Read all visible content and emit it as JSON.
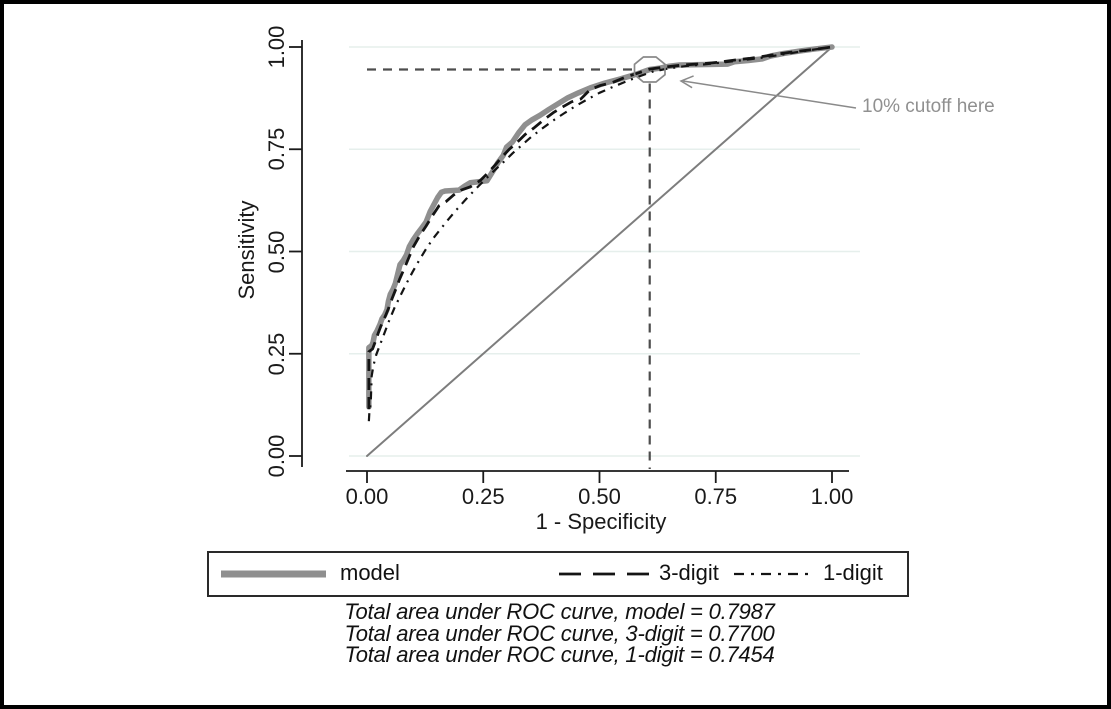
{
  "chart_data": {
    "type": "line",
    "title": "",
    "xlabel": "1 - Specificity",
    "ylabel": "Sensitivity",
    "xlim": [
      0,
      1
    ],
    "ylim": [
      0,
      1
    ],
    "xtick_values": [
      0,
      0.25,
      0.5,
      0.75,
      1
    ],
    "xtick_labels": [
      "0.00",
      "0.25",
      "0.50",
      "0.75",
      "1.00"
    ],
    "ytick_values": [
      0,
      0.25,
      0.5,
      0.75,
      1
    ],
    "ytick_labels": [
      "0.00",
      "0.25",
      "0.50",
      "0.75",
      "1.00"
    ],
    "grid": "horizontal-only",
    "colors": {
      "gridline": "#e6efec",
      "axis": "#1a1a1a",
      "cutoff_dash": "#4d4d4d",
      "annotation": "#909090",
      "reference": "#7d7d7d"
    },
    "series": [
      {
        "name": "model",
        "style": "solid",
        "color": "#8f8f8f",
        "width": 5.5,
        "points": [
          [
            0.004,
            0.12
          ],
          [
            0.004,
            0.265
          ],
          [
            0.01,
            0.27
          ],
          [
            0.013,
            0.278
          ],
          [
            0.016,
            0.295
          ],
          [
            0.022,
            0.307
          ],
          [
            0.028,
            0.322
          ],
          [
            0.032,
            0.335
          ],
          [
            0.038,
            0.345
          ],
          [
            0.043,
            0.358
          ],
          [
            0.046,
            0.378
          ],
          [
            0.05,
            0.395
          ],
          [
            0.056,
            0.408
          ],
          [
            0.061,
            0.422
          ],
          [
            0.066,
            0.445
          ],
          [
            0.071,
            0.468
          ],
          [
            0.078,
            0.478
          ],
          [
            0.085,
            0.492
          ],
          [
            0.091,
            0.512
          ],
          [
            0.099,
            0.528
          ],
          [
            0.108,
            0.543
          ],
          [
            0.118,
            0.558
          ],
          [
            0.127,
            0.572
          ],
          [
            0.136,
            0.598
          ],
          [
            0.144,
            0.615
          ],
          [
            0.152,
            0.632
          ],
          [
            0.16,
            0.645
          ],
          [
            0.168,
            0.648
          ],
          [
            0.198,
            0.65
          ],
          [
            0.21,
            0.66
          ],
          [
            0.222,
            0.668
          ],
          [
            0.258,
            0.673
          ],
          [
            0.27,
            0.695
          ],
          [
            0.282,
            0.718
          ],
          [
            0.293,
            0.735
          ],
          [
            0.3,
            0.755
          ],
          [
            0.313,
            0.768
          ],
          [
            0.326,
            0.79
          ],
          [
            0.34,
            0.81
          ],
          [
            0.355,
            0.822
          ],
          [
            0.372,
            0.833
          ],
          [
            0.392,
            0.848
          ],
          [
            0.412,
            0.862
          ],
          [
            0.432,
            0.876
          ],
          [
            0.455,
            0.888
          ],
          [
            0.48,
            0.9
          ],
          [
            0.512,
            0.912
          ],
          [
            0.545,
            0.922
          ],
          [
            0.578,
            0.933
          ],
          [
            0.608,
            0.945
          ],
          [
            0.628,
            0.948
          ],
          [
            0.65,
            0.953
          ],
          [
            0.672,
            0.956
          ],
          [
            0.775,
            0.958
          ],
          [
            0.79,
            0.964
          ],
          [
            0.82,
            0.967
          ],
          [
            0.85,
            0.971
          ],
          [
            0.868,
            0.978
          ],
          [
            0.895,
            0.984
          ],
          [
            0.93,
            0.99
          ],
          [
            0.962,
            0.995
          ],
          [
            1.0,
            1.0
          ]
        ]
      },
      {
        "name": "1-digit",
        "style": "dash-dot",
        "color": "#141414",
        "width": 2.2,
        "points": [
          [
            0.004,
            0.085
          ],
          [
            0.005,
            0.105
          ],
          [
            0.008,
            0.128
          ],
          [
            0.01,
            0.195
          ],
          [
            0.014,
            0.222
          ],
          [
            0.02,
            0.248
          ],
          [
            0.028,
            0.272
          ],
          [
            0.038,
            0.302
          ],
          [
            0.048,
            0.332
          ],
          [
            0.059,
            0.362
          ],
          [
            0.071,
            0.39
          ],
          [
            0.084,
            0.42
          ],
          [
            0.098,
            0.45
          ],
          [
            0.113,
            0.48
          ],
          [
            0.128,
            0.508
          ],
          [
            0.143,
            0.533
          ],
          [
            0.159,
            0.556
          ],
          [
            0.176,
            0.58
          ],
          [
            0.194,
            0.604
          ],
          [
            0.213,
            0.628
          ],
          [
            0.233,
            0.652
          ],
          [
            0.253,
            0.675
          ],
          [
            0.273,
            0.697
          ],
          [
            0.293,
            0.718
          ],
          [
            0.313,
            0.74
          ],
          [
            0.333,
            0.76
          ],
          [
            0.353,
            0.78
          ],
          [
            0.376,
            0.8
          ],
          [
            0.4,
            0.82
          ],
          [
            0.424,
            0.838
          ],
          [
            0.449,
            0.856
          ],
          [
            0.474,
            0.872
          ],
          [
            0.5,
            0.888
          ],
          [
            0.53,
            0.903
          ],
          [
            0.56,
            0.917
          ],
          [
            0.59,
            0.93
          ],
          [
            0.615,
            0.94
          ],
          [
            0.65,
            0.948
          ],
          [
            0.69,
            0.954
          ],
          [
            0.73,
            0.958
          ],
          [
            0.77,
            0.963
          ],
          [
            0.81,
            0.968
          ],
          [
            0.85,
            0.974
          ],
          [
            0.89,
            0.981
          ],
          [
            0.928,
            0.988
          ],
          [
            0.963,
            0.994
          ],
          [
            1.0,
            1.0
          ]
        ]
      },
      {
        "name": "3-digit",
        "style": "long-dash",
        "color": "#141414",
        "width": 2.8,
        "points": [
          [
            0.004,
            0.115
          ],
          [
            0.004,
            0.255
          ],
          [
            0.012,
            0.262
          ],
          [
            0.018,
            0.28
          ],
          [
            0.024,
            0.3
          ],
          [
            0.03,
            0.318
          ],
          [
            0.038,
            0.338
          ],
          [
            0.046,
            0.36
          ],
          [
            0.054,
            0.385
          ],
          [
            0.062,
            0.408
          ],
          [
            0.07,
            0.432
          ],
          [
            0.08,
            0.458
          ],
          [
            0.09,
            0.485
          ],
          [
            0.1,
            0.512
          ],
          [
            0.113,
            0.538
          ],
          [
            0.127,
            0.562
          ],
          [
            0.141,
            0.588
          ],
          [
            0.155,
            0.612
          ],
          [
            0.17,
            0.622
          ],
          [
            0.186,
            0.638
          ],
          [
            0.202,
            0.65
          ],
          [
            0.222,
            0.658
          ],
          [
            0.243,
            0.673
          ],
          [
            0.26,
            0.692
          ],
          [
            0.276,
            0.712
          ],
          [
            0.291,
            0.732
          ],
          [
            0.306,
            0.75
          ],
          [
            0.322,
            0.766
          ],
          [
            0.34,
            0.786
          ],
          [
            0.36,
            0.803
          ],
          [
            0.38,
            0.822
          ],
          [
            0.4,
            0.839
          ],
          [
            0.42,
            0.853
          ],
          [
            0.44,
            0.866
          ],
          [
            0.46,
            0.873
          ],
          [
            0.48,
            0.896
          ],
          [
            0.502,
            0.906
          ],
          [
            0.528,
            0.913
          ],
          [
            0.555,
            0.926
          ],
          [
            0.582,
            0.936
          ],
          [
            0.608,
            0.946
          ],
          [
            0.64,
            0.951
          ],
          [
            0.68,
            0.956
          ],
          [
            0.72,
            0.959
          ],
          [
            0.758,
            0.963
          ],
          [
            0.79,
            0.968
          ],
          [
            0.822,
            0.972
          ],
          [
            0.852,
            0.977
          ],
          [
            0.885,
            0.983
          ],
          [
            0.922,
            0.989
          ],
          [
            0.96,
            0.994
          ],
          [
            1.0,
            1.0
          ]
        ]
      },
      {
        "name": "reference",
        "style": "solid",
        "color": "#7d7d7d",
        "width": 2,
        "points": [
          [
            0,
            0
          ],
          [
            1,
            1
          ]
        ]
      }
    ],
    "cutoff_annotation": {
      "label": "10% cutoff here",
      "x": 0.608,
      "y": 0.945
    },
    "legend": {
      "position": "bottom",
      "entries": [
        {
          "label": "model",
          "style": "solid",
          "color": "#8f8f8f",
          "width": 7
        },
        {
          "label": "3-digit",
          "style": "long-dash",
          "color": "#141414",
          "width": 2.8
        },
        {
          "label": "1-digit",
          "style": "dash-dot",
          "color": "#141414",
          "width": 2.2
        }
      ]
    },
    "footnotes": [
      "Total area under ROC curve, model = 0.7987",
      "Total area under ROC curve, 3-digit = 0.7700",
      "Total area under ROC curve, 1-digit = 0.7454"
    ],
    "auc": {
      "model": 0.7987,
      "three_digit": 0.77,
      "one_digit": 0.7454
    }
  }
}
